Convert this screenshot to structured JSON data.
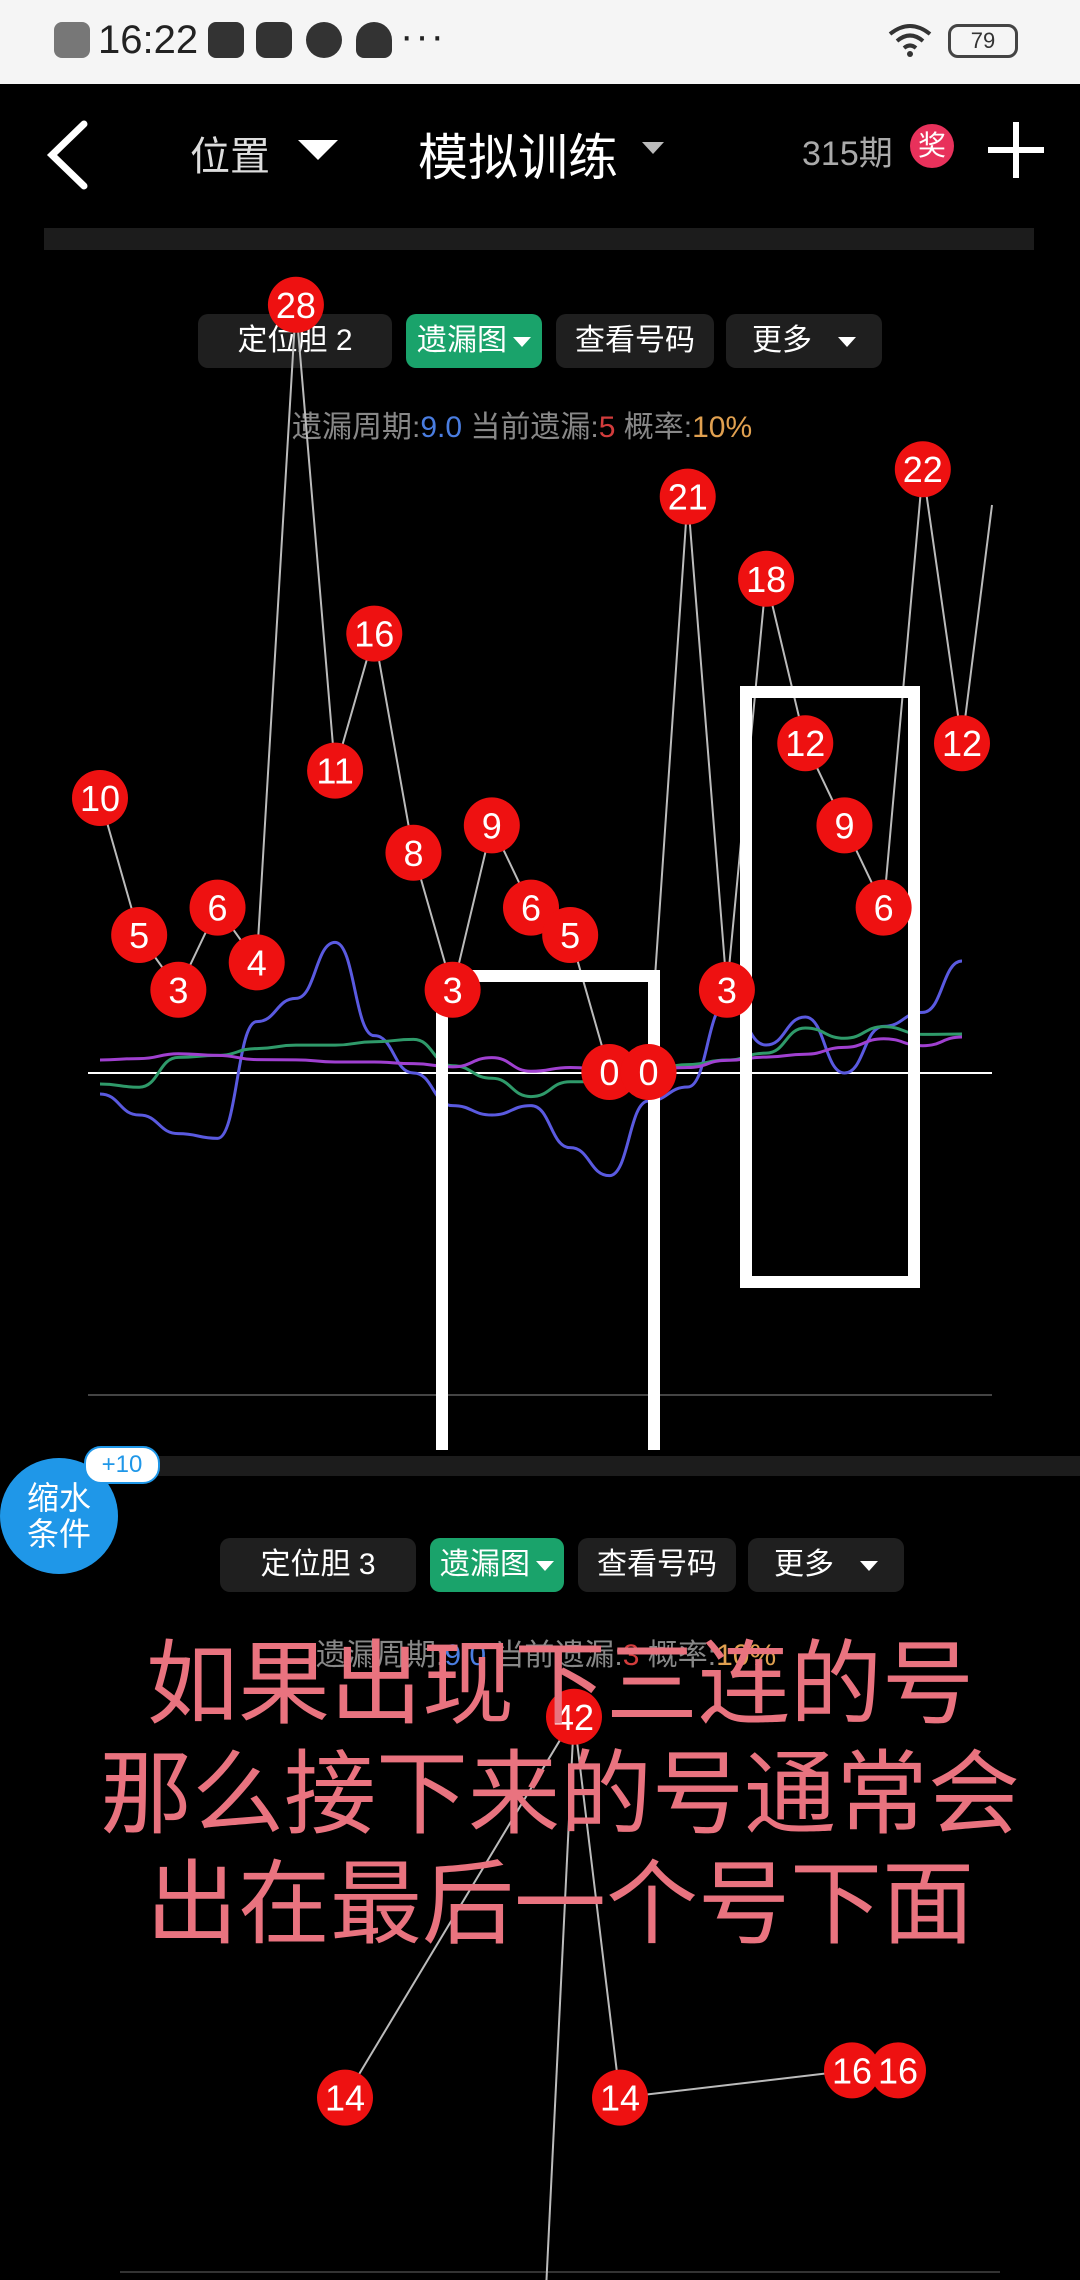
{
  "status_bar": {
    "time": "16:22",
    "more_icons": "···",
    "battery": "79"
  },
  "header": {
    "position_label": "位置",
    "title": "模拟训练",
    "period": "315期",
    "prize_badge": "奖"
  },
  "section1": {
    "tab1": "定位胆 2",
    "tab2": "遗漏图",
    "tab3": "查看号码",
    "tab4": "更多",
    "stats": {
      "cycle_label": "遗漏周期:",
      "cycle_value": "9.0",
      "current_label": " 当前遗漏:",
      "current_value": "5",
      "prob_label": " 概率:",
      "prob_value": "10%"
    }
  },
  "section2": {
    "tab1": "定位胆 3",
    "tab2": "遗漏图",
    "tab3": "查看号码",
    "tab4": "更多",
    "stats": {
      "cycle_label": "遗漏周期:",
      "cycle_value": "9.0",
      "current_label": " 当前遗漏:",
      "current_value": "3",
      "prob_label": " 概率:",
      "prob_value": "10%"
    }
  },
  "float_button": {
    "line1": "缩水",
    "line2": "条件",
    "badge": "+10"
  },
  "caption": {
    "line1": "如果出现下三连的号",
    "line2": "那么接下来的号通常会",
    "line3": "出在最后一个号下面"
  },
  "chart_data": [
    {
      "type": "line",
      "series": [
        {
          "values": [
            10,
            5,
            3,
            6,
            4,
            28,
            11,
            16,
            8,
            3,
            9,
            6,
            5,
            0,
            0,
            21,
            3,
            18,
            12,
            9,
            6,
            22,
            12
          ]
        }
      ],
      "colors": {
        "points": "#ee1111",
        "line": "#bbbbbb",
        "ma_blue": "#5a5ae0",
        "ma_green": "#2f9a6a",
        "ma_purple": "#a040d0"
      }
    },
    {
      "type": "line",
      "series": [
        {
          "values": [
            14,
            42,
            14,
            16,
            16
          ]
        }
      ]
    }
  ]
}
